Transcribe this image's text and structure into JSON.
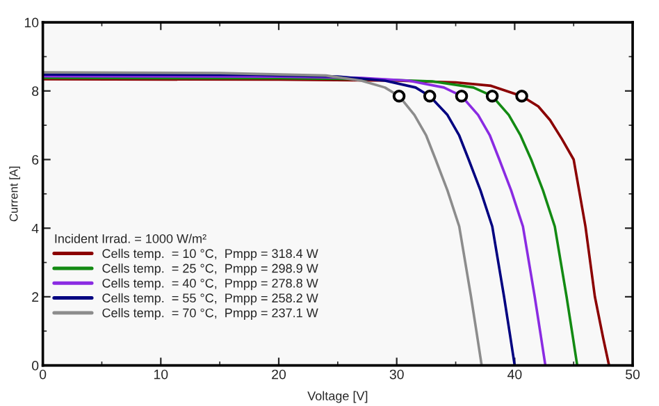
{
  "chart_data": {
    "type": "line",
    "xlabel": "Voltage [V]",
    "ylabel": "Current [A]",
    "legend_title": "Incident Irrad. = 1000 W/m²",
    "legend": "left",
    "grid": false,
    "line_style": "solid",
    "marker": "none",
    "xlim": [
      0,
      50
    ],
    "xticks": [
      0,
      10,
      20,
      30,
      40,
      50
    ],
    "ylim": [
      0,
      10
    ],
    "yticks": [
      0,
      2,
      4,
      6,
      8,
      10
    ],
    "series": [
      {
        "name": "Cells temp.  = 10 °C,  Pmpp = 318.4 W",
        "color": "#8b0000",
        "x": [
          0,
          20,
          30,
          35,
          38,
          40.6,
          42,
          43,
          44,
          45,
          46,
          46.8,
          47.5,
          48
        ],
        "values": [
          8.34,
          8.33,
          8.3,
          8.25,
          8.15,
          7.85,
          7.55,
          7.15,
          6.6,
          6.0,
          4.05,
          2.0,
          0.8,
          0
        ]
      },
      {
        "name": "Cells temp.  = 25 °C,  Pmpp = 298.9 W",
        "color": "#138a13",
        "x": [
          0,
          20,
          28,
          33,
          36.5,
          38.1,
          39.5,
          40.5,
          41.4,
          42.4,
          43.4,
          44.4,
          44.9,
          45.3
        ],
        "values": [
          8.38,
          8.37,
          8.34,
          8.28,
          8.1,
          7.85,
          7.3,
          6.7,
          6.0,
          5.1,
          4.05,
          2.0,
          0.9,
          0
        ]
      },
      {
        "name": "Cells temp.  = 40 °C,  Pmpp = 278.8 W",
        "color": "#8a2be2",
        "x": [
          0,
          20,
          27,
          31,
          34,
          35.5,
          36.9,
          37.9,
          38.7,
          39.7,
          40.7,
          41.7,
          42.2,
          42.6
        ],
        "values": [
          8.43,
          8.42,
          8.38,
          8.3,
          8.1,
          7.85,
          7.3,
          6.7,
          6.0,
          5.1,
          4.05,
          2.0,
          0.9,
          0
        ]
      },
      {
        "name": "Cells temp.  = 55 °C,  Pmpp = 258.2 W",
        "color": "#000080",
        "x": [
          0,
          18,
          25,
          29,
          31.6,
          32.8,
          34.3,
          35.3,
          36.1,
          37.1,
          38.1,
          39.1,
          39.6,
          40.0
        ],
        "values": [
          8.48,
          8.47,
          8.42,
          8.3,
          8.1,
          7.85,
          7.3,
          6.7,
          6.0,
          5.1,
          4.05,
          2.0,
          0.9,
          0
        ]
      },
      {
        "name": "Cells temp.  = 70 °C,  Pmpp = 237.1 W",
        "color": "#8c8c8c",
        "x": [
          0,
          15,
          24,
          27,
          29,
          30.2,
          31.5,
          32.5,
          33.3,
          34.3,
          35.3,
          36.3,
          36.8,
          37.2
        ],
        "values": [
          8.54,
          8.52,
          8.45,
          8.3,
          8.1,
          7.85,
          7.3,
          6.7,
          6.0,
          5.1,
          4.05,
          2.0,
          0.9,
          0
        ]
      },
      {
        "type": "scatter",
        "marker": "circle",
        "color": "#000000",
        "x": [
          40.6,
          38.1,
          35.5,
          32.8,
          30.2
        ],
        "values": [
          7.85,
          7.85,
          7.85,
          7.85,
          7.85
        ]
      }
    ]
  }
}
